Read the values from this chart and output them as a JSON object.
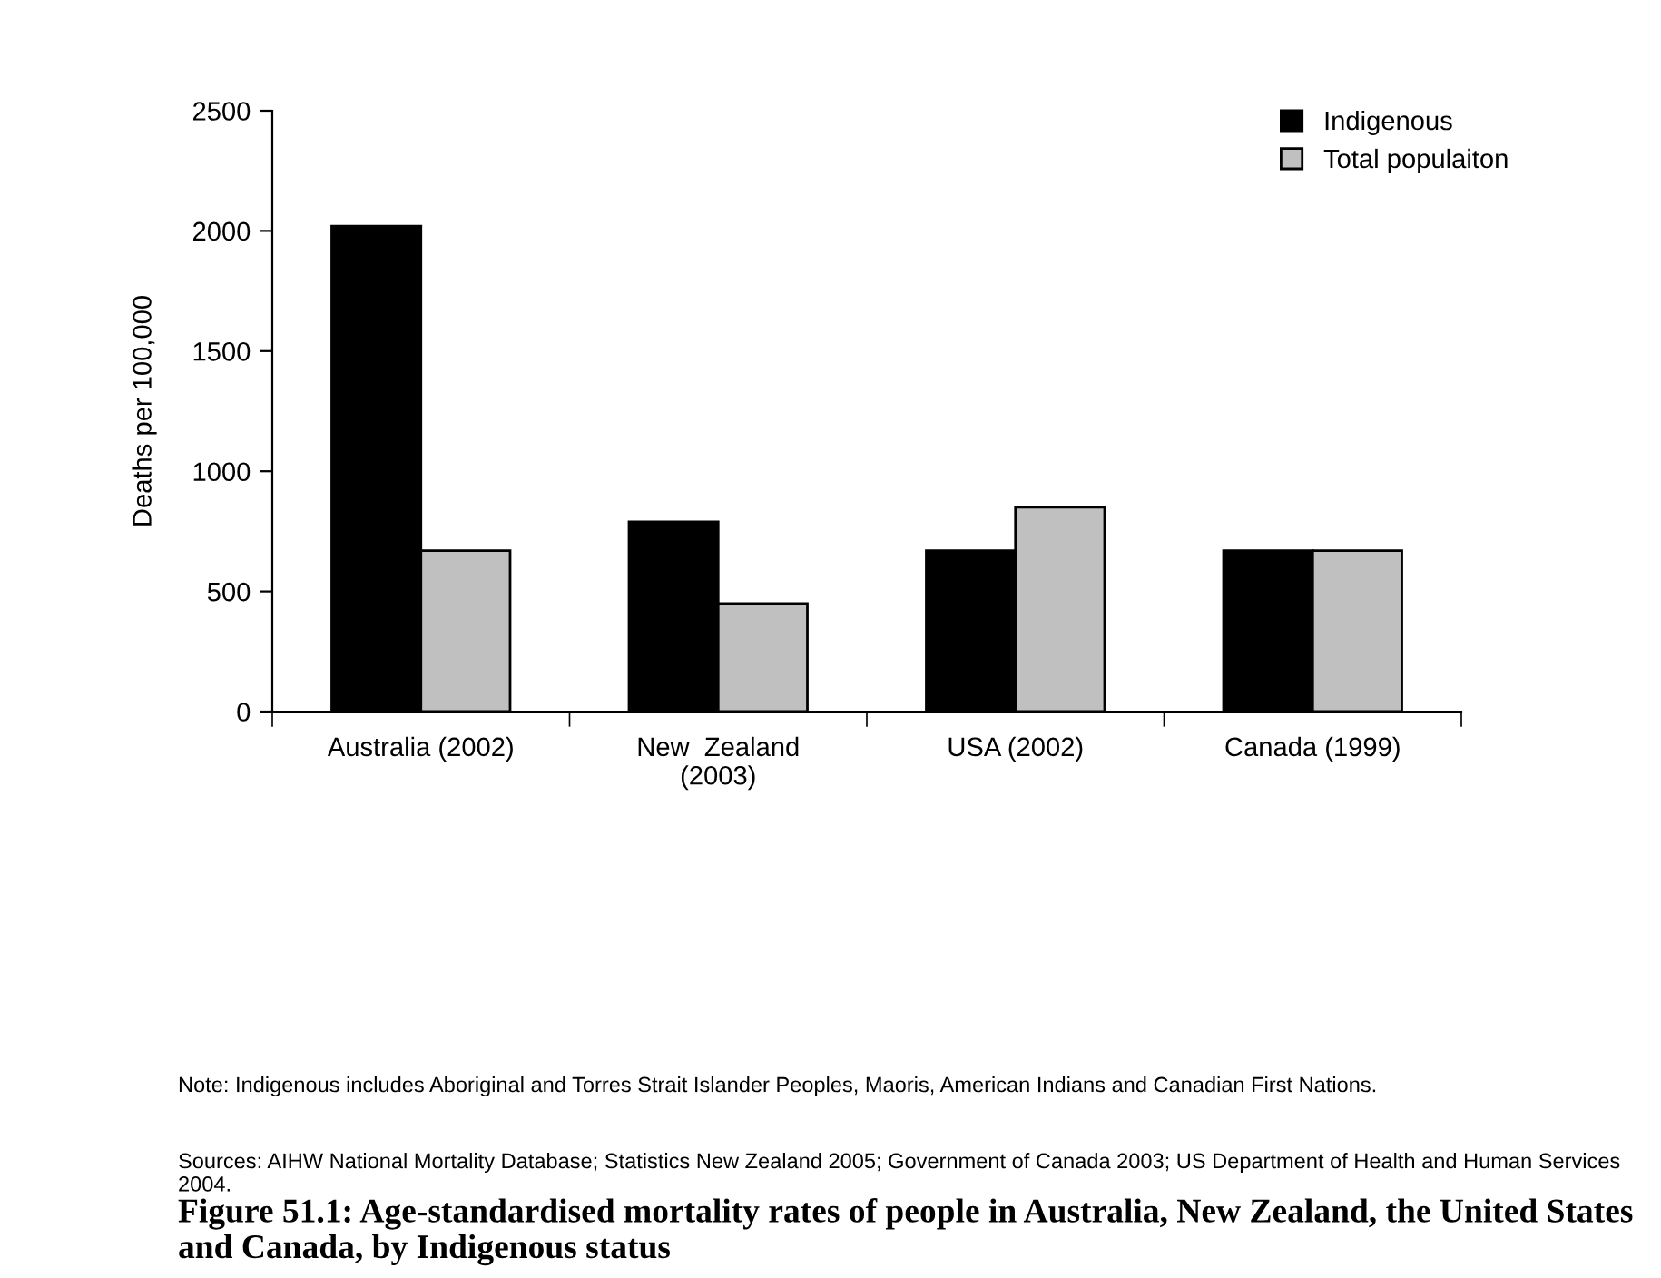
{
  "chart_data": {
    "type": "bar",
    "title": "Figure 51.1: Age-standardised mortality rates of people in Australia, New Zealand, the United States and Canada, by Indigenous status",
    "ylabel": "Deaths per 100,000",
    "categories": [
      "Australia (2002)",
      "New  Zealand\n(2003)",
      "USA (2002)",
      "Canada (1999)"
    ],
    "series": [
      {
        "name": "Indigenous",
        "color": "#000000",
        "values": [
          2020,
          790,
          670,
          670
        ]
      },
      {
        "name": "Total populaiton",
        "color": "#c0c0c0",
        "values": [
          670,
          450,
          850,
          670
        ]
      }
    ],
    "ylim": [
      0,
      2500
    ],
    "yticks": [
      0,
      500,
      1000,
      1500,
      2000,
      2500
    ],
    "grid": false,
    "legend": "top right",
    "annotations": [
      "Note: Indigenous includes Aboriginal and Torres Strait Islander Peoples, Maoris, American Indians and Canadian First Nations.",
      "Sources: AIHW National Mortality Database; Statistics New Zealand 2005; Government of Canada 2003; US Department of Health and Human Services 2004."
    ]
  }
}
